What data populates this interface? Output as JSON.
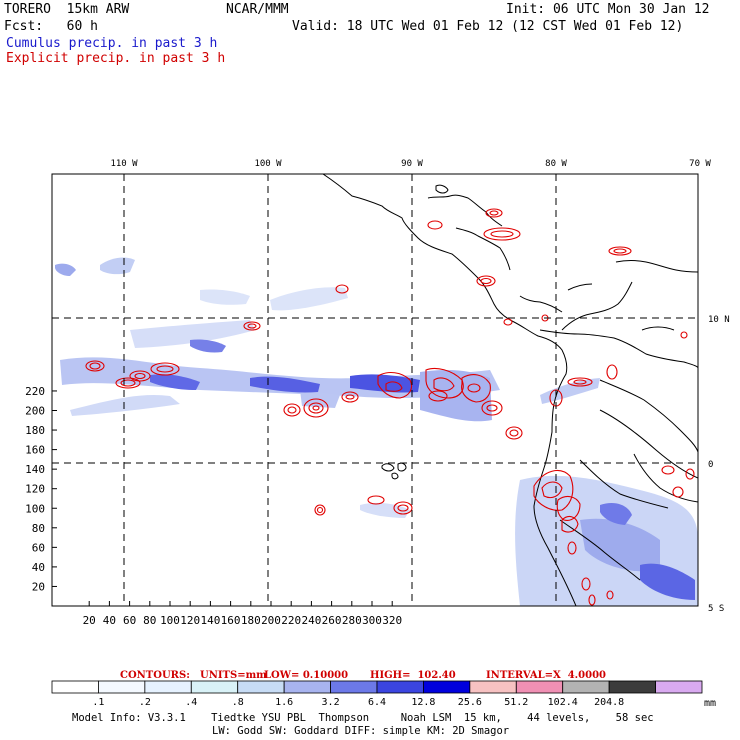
{
  "header": {
    "model": "TORERO  15km ARW",
    "center": "NCAR/MMM",
    "init": "Init: 06 UTC Mon 30 Jan 12",
    "fcst": "Fcst:   60 h",
    "valid": "Valid: 18 UTC Wed 01 Feb 12 (12 CST Wed 01 Feb 12)",
    "legend_cumulus": "Cumulus precip. in past 3 h",
    "legend_explicit": "Explicit precip. in past 3 h"
  },
  "map": {
    "lon_labels": [
      "110 W",
      "100 W",
      "90 W",
      "80 W",
      "70 W"
    ],
    "lat_labels": [
      "10 N",
      "0",
      "5 S"
    ],
    "y_ticks": [
      "220",
      "200",
      "180",
      "160",
      "140",
      "120",
      "100",
      "80",
      "60",
      "40",
      "20"
    ],
    "x_ticks": [
      "20",
      "40",
      "60",
      "80",
      "100",
      "120",
      "140",
      "160",
      "180",
      "200",
      "220",
      "240",
      "260",
      "280",
      "300",
      "320"
    ]
  },
  "contours": {
    "label": "CONTOURS:",
    "units": "UNITS=mm",
    "low": "LOW= 0.10000",
    "high": "HIGH=  102.40",
    "interval": "INTERVAL=X  4.0000"
  },
  "colorbar": {
    "colors": [
      "#ffffff",
      "#f4f9ff",
      "#e6f2ff",
      "#d9f2f7",
      "#c7dcf5",
      "#a8b4ef",
      "#6c79e8",
      "#3b45e0",
      "#0000dd",
      "#f7c2c2",
      "#f090b4",
      "#b3b3b3",
      "#3c3c3c",
      "#d9aaf0"
    ],
    "labels": [
      ".1",
      ".2",
      ".4",
      ".8",
      "1.6",
      "3.2",
      "6.4",
      "12.8",
      "25.6",
      "51.2",
      "102.4",
      "204.8"
    ],
    "units": "mm"
  },
  "footer": {
    "line1": "Model Info: V3.3.1    Tiedtke YSU PBL  Thompson     Noah LSM  15 km,    44 levels,    58 sec",
    "line2": "LW: Godd SW: Goddard DIFF: simple KM: 2D Smagor"
  }
}
